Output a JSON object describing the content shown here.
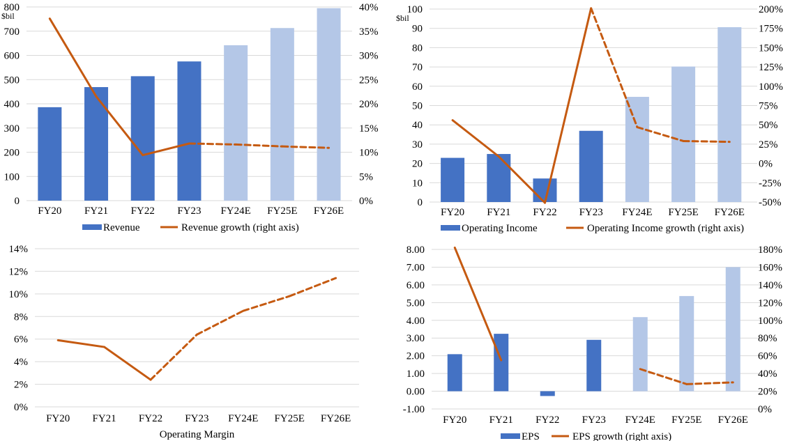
{
  "colors": {
    "actual": "#4472c4",
    "estimate": "#b4c7e7",
    "line": "#c55a11",
    "grid": "#d9d9d9"
  },
  "chart_data": [
    {
      "type": "bar",
      "id": "revenue",
      "categories": [
        "FY20",
        "FY21",
        "FY22",
        "FY23",
        "FY24E",
        "FY25E",
        "FY26E"
      ],
      "estimate_from_index": 4,
      "left_unit": "$bil",
      "left_ticks": [
        "0",
        "100",
        "200",
        "300",
        "400",
        "500",
        "600",
        "700",
        "800"
      ],
      "right_ticks": [
        "0%",
        "5%",
        "10%",
        "15%",
        "20%",
        "25%",
        "30%",
        "35%",
        "40%"
      ],
      "ylim": [
        0,
        800
      ],
      "y2lim": [
        0,
        40
      ],
      "series": [
        {
          "name": "Revenue",
          "kind": "bar",
          "axis": "left",
          "values": [
            386,
            469,
            514,
            575,
            642,
            713,
            795
          ]
        },
        {
          "name": "Revenue growth (right axis)",
          "kind": "line",
          "axis": "right",
          "values": [
            37.6,
            21.5,
            9.4,
            11.8,
            11.6,
            11.2,
            10.9
          ]
        }
      ],
      "legend": [
        "Revenue",
        "Revenue growth (right axis)"
      ]
    },
    {
      "type": "bar",
      "id": "operating-income",
      "categories": [
        "FY20",
        "FY21",
        "FY22",
        "FY23",
        "FY24E",
        "FY25E",
        "FY26E"
      ],
      "estimate_from_index": 4,
      "left_unit": "$bil",
      "left_ticks": [
        "0",
        "10",
        "20",
        "30",
        "40",
        "50",
        "60",
        "70",
        "80",
        "90",
        "100"
      ],
      "right_ticks": [
        "-50%",
        "-25%",
        "0%",
        "25%",
        "50%",
        "75%",
        "100%",
        "125%",
        "150%",
        "175%",
        "200%"
      ],
      "ylim": [
        0,
        100
      ],
      "y2lim": [
        -50,
        200
      ],
      "series": [
        {
          "name": "Operating Income",
          "kind": "bar",
          "axis": "left",
          "values": [
            22.9,
            24.9,
            12.2,
            36.9,
            54.5,
            70.2,
            90.6
          ]
        },
        {
          "name": "Operating Income growth (right axis)",
          "kind": "line",
          "axis": "right",
          "values": [
            56,
            9,
            -51,
            201,
            47,
            29,
            28
          ]
        }
      ],
      "legend": [
        "Operating Income",
        "Operating Income growth (right axis)"
      ]
    },
    {
      "type": "line",
      "id": "operating-margin",
      "categories": [
        "FY20",
        "FY21",
        "FY22",
        "FY23",
        "FY24E",
        "FY25E",
        "FY26E"
      ],
      "estimate_from_index": 3,
      "left_ticks": [
        "0%",
        "2%",
        "4%",
        "6%",
        "8%",
        "10%",
        "12%",
        "14%"
      ],
      "ylim": [
        0,
        14
      ],
      "series": [
        {
          "name": "Operating Margin",
          "kind": "line",
          "axis": "left",
          "values": [
            5.9,
            5.3,
            2.4,
            6.4,
            8.5,
            9.8,
            11.4
          ]
        }
      ],
      "xlabel": "Operating Margin"
    },
    {
      "type": "bar",
      "id": "eps",
      "categories": [
        "FY20",
        "FY21",
        "FY22",
        "FY23",
        "FY24E",
        "FY25E",
        "FY26E"
      ],
      "estimate_from_index": 4,
      "left_ticks": [
        "-1.00",
        "0.00",
        "1.00",
        "2.00",
        "3.00",
        "4.00",
        "5.00",
        "6.00",
        "7.00",
        "8.00"
      ],
      "right_ticks": [
        "0%",
        "20%",
        "40%",
        "60%",
        "80%",
        "100%",
        "120%",
        "140%",
        "160%",
        "180%"
      ],
      "ylim": [
        -1,
        8
      ],
      "y2lim": [
        0,
        180
      ],
      "series": [
        {
          "name": "EPS",
          "kind": "bar",
          "axis": "left",
          "values": [
            2.09,
            3.24,
            -0.27,
            2.9,
            4.18,
            5.37,
            7.0
          ]
        },
        {
          "name": "EPS growth (right axis)",
          "kind": "line",
          "axis": "right",
          "values": [
            182,
            55,
            null,
            null,
            45,
            28,
            30
          ]
        }
      ],
      "legend": [
        "EPS",
        "EPS growth (right axis)"
      ]
    }
  ]
}
